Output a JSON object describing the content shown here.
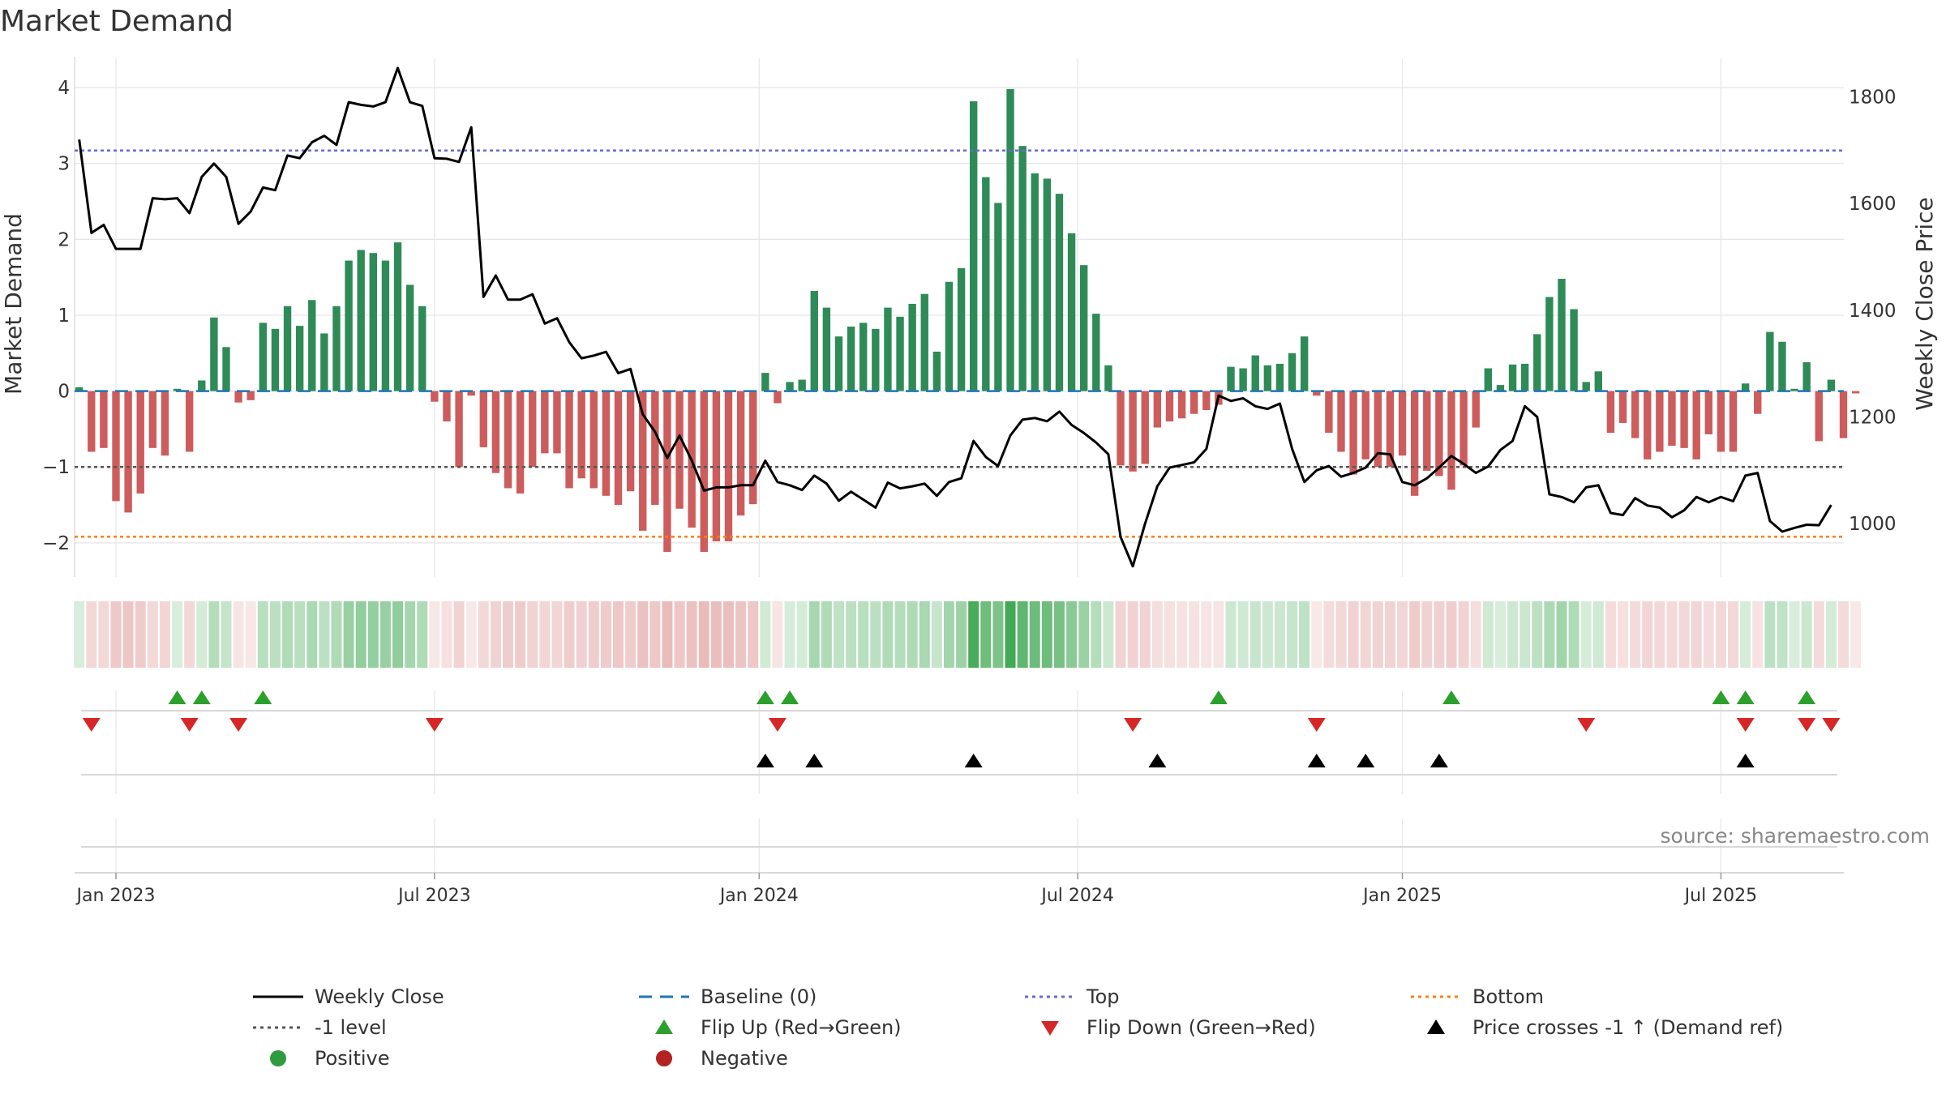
{
  "colors": {
    "positive": "#2e8b57",
    "negative": "#cd5c5c",
    "price_line": "#000000",
    "baseline": "#1f77b4",
    "top_line": "#6a6acd",
    "bottom_line": "#ff7f0e",
    "minus1_line": "#555555",
    "flip_up": "#2ca02c",
    "flip_down": "#d62728",
    "cross_marker": "#000000",
    "grid": "#e6e6e6",
    "axis_text": "#333333",
    "source_text": "#888888"
  },
  "chart_data": {
    "type": "bar",
    "title": "Market Demand",
    "ylabel_left": "Market Demand",
    "ylabel_right": "Weekly Close Price",
    "ylim_left": [
      -2.45,
      4.3
    ],
    "ylim_right": [
      900,
      1860
    ],
    "yticks_left": [
      4,
      3,
      2,
      1,
      0,
      -1,
      -2
    ],
    "yticks_left_labels": [
      "4",
      "3",
      "2",
      "1",
      "0",
      "−1",
      "−2"
    ],
    "yticks_right": [
      1800,
      1600,
      1400,
      1200,
      1000
    ],
    "yticks_right_labels": [
      "1800",
      "1600",
      "1400",
      "1200",
      "1000"
    ],
    "x_start_week": -3,
    "weeks_count": 145,
    "xticks": [
      {
        "week": 0,
        "label": "Jan 2023"
      },
      {
        "week": 26,
        "label": "Jul 2023"
      },
      {
        "week": 52.5,
        "label": "Jan 2024"
      },
      {
        "week": 78.5,
        "label": "Jul 2024"
      },
      {
        "week": 105,
        "label": "Jan 2025"
      },
      {
        "week": 131,
        "label": "Jul 2025"
      }
    ],
    "reference_levels": {
      "top": 3.17,
      "bottom": -1.92,
      "minus1": -1.0,
      "baseline": 0
    },
    "demand": [
      0.05,
      -0.8,
      -0.75,
      -1.45,
      -1.6,
      -1.35,
      -0.75,
      -0.85,
      0.03,
      -0.8,
      0.14,
      0.97,
      0.58,
      -0.15,
      -0.12,
      0.9,
      0.82,
      1.12,
      0.86,
      1.2,
      0.76,
      1.12,
      1.72,
      1.86,
      1.82,
      1.72,
      1.96,
      1.4,
      1.12,
      -0.14,
      -0.4,
      -1.0,
      -0.06,
      -0.74,
      -1.08,
      -1.28,
      -1.35,
      -1.0,
      -0.82,
      -0.82,
      -1.28,
      -1.15,
      -1.28,
      -1.38,
      -1.5,
      -1.32,
      -1.84,
      -1.5,
      -2.12,
      -1.55,
      -1.8,
      -2.12,
      -1.98,
      -1.98,
      -1.64,
      -1.49,
      0.24,
      -0.16,
      0.12,
      0.15,
      1.32,
      1.1,
      0.72,
      0.85,
      0.9,
      0.82,
      1.1,
      0.98,
      1.15,
      1.28,
      0.52,
      1.44,
      1.62,
      3.82,
      2.82,
      2.48,
      3.98,
      3.23,
      2.87,
      2.8,
      2.6,
      2.08,
      1.66,
      1.02,
      0.34,
      -0.98,
      -1.06,
      -0.96,
      -0.48,
      -0.4,
      -0.36,
      -0.3,
      -0.25,
      -0.18,
      0.32,
      0.3,
      0.47,
      0.34,
      0.36,
      0.5,
      0.72,
      -0.06,
      -0.55,
      -0.8,
      -1.1,
      -0.9,
      -1.0,
      -1.0,
      -0.85,
      -1.38,
      -1.05,
      -1.12,
      -1.3,
      -0.98,
      -0.48,
      0.3,
      0.08,
      0.35,
      0.36,
      0.75,
      1.24,
      1.48,
      1.08,
      0.12,
      0.26,
      -0.55,
      -0.42,
      -0.62,
      -0.9,
      -0.8,
      -0.72,
      -0.75,
      -0.9,
      -0.57,
      -0.8,
      -0.8,
      0.1,
      -0.3,
      0.78,
      0.65,
      0.03,
      0.38,
      -0.66,
      0.15,
      -0.62,
      -0.03
    ],
    "price": [
      1720,
      1545,
      1560,
      1515,
      1515,
      1515,
      1610,
      1608,
      1610,
      1582,
      1650,
      1675,
      1650,
      1562,
      1585,
      1630,
      1625,
      1690,
      1685,
      1715,
      1727,
      1710,
      1790,
      1785,
      1782,
      1790,
      1854,
      1790,
      1783,
      1685,
      1684,
      1678,
      1743,
      1425,
      1465,
      1420,
      1420,
      1430,
      1375,
      1385,
      1340,
      1310,
      1315,
      1322,
      1282,
      1290,
      1205,
      1172,
      1123,
      1165,
      1118,
      1062,
      1068,
      1068,
      1072,
      1072,
      1118,
      1078,
      1072,
      1063,
      1090,
      1075,
      1043,
      1060,
      1045,
      1030,
      1077,
      1066,
      1070,
      1075,
      1052,
      1078,
      1085,
      1155,
      1125,
      1108,
      1165,
      1195,
      1198,
      1192,
      1210,
      1185,
      1170,
      1152,
      1130,
      975,
      920,
      1000,
      1070,
      1105,
      1110,
      1115,
      1140,
      1240,
      1230,
      1235,
      1220,
      1215,
      1225,
      1140,
      1078,
      1100,
      1108,
      1088,
      1095,
      1105,
      1132,
      1130,
      1078,
      1072,
      1085,
      1105,
      1127,
      1112,
      1095,
      1107,
      1138,
      1155,
      1220,
      1200,
      1055,
      1050,
      1040,
      1068,
      1072,
      1020,
      1016,
      1048,
      1034,
      1030,
      1012,
      1025,
      1050,
      1040,
      1050,
      1042,
      1090,
      1095,
      1005,
      985,
      992,
      998,
      997,
      1035
    ]
  },
  "mini_panel": {
    "flip_up_weeks": [
      5,
      7,
      12,
      53,
      55,
      90,
      109,
      131,
      133,
      138
    ],
    "flip_down_weeks": [
      -2,
      6,
      10,
      26,
      54,
      83,
      98,
      120,
      133,
      138,
      140
    ],
    "cross_weeks": [
      53,
      57,
      70,
      85,
      98,
      102,
      108,
      133
    ]
  },
  "source_text": "source: sharemaestro.com",
  "legend": [
    {
      "key": "close",
      "label": "Weekly Close"
    },
    {
      "key": "baseline",
      "label": "Baseline (0)"
    },
    {
      "key": "top",
      "label": "Top"
    },
    {
      "key": "bottom",
      "label": "Bottom"
    },
    {
      "key": "minus1",
      "label": "-1 level"
    },
    {
      "key": "flipup",
      "label": "Flip Up (Red→Green)"
    },
    {
      "key": "flipdown",
      "label": "Flip Down (Green→Red)"
    },
    {
      "key": "cross",
      "label": "Price crosses -1 ↑ (Demand ref)"
    },
    {
      "key": "positive",
      "label": "Positive"
    },
    {
      "key": "negative",
      "label": "Negative"
    }
  ]
}
